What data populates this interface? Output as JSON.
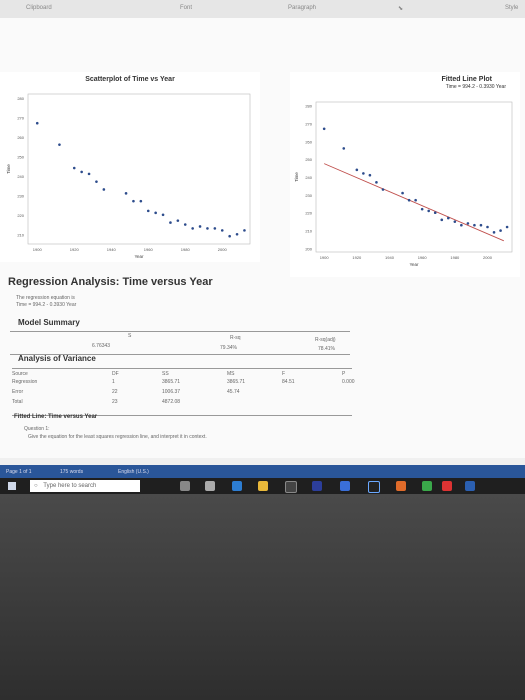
{
  "ribbon": {
    "clipboard": "Clipboard",
    "font": "Font",
    "paragraph": "Paragraph",
    "styles": "Style"
  },
  "scatter": {
    "title": "Scatterplot of Time vs Year",
    "xlabel": "Year",
    "ylabel": "Time",
    "yticks": [
      "280",
      "270",
      "260",
      "250",
      "240",
      "230",
      "220",
      "210"
    ],
    "xticks": [
      "1900",
      "1920",
      "1940",
      "1960",
      "1980",
      "2000"
    ]
  },
  "fitted": {
    "title": "Fitted Line Plot",
    "equation": "Time = 994.2 - 0.3930 Year",
    "xlabel": "Year",
    "ylabel": "Time",
    "yticks": [
      "280",
      "270",
      "260",
      "250",
      "240",
      "230",
      "220",
      "210",
      "200"
    ],
    "xticks": [
      "1900",
      "1920",
      "1940",
      "1960",
      "1980",
      "2000"
    ]
  },
  "chart_data": [
    {
      "type": "scatter",
      "title": "Scatterplot of Time vs Year",
      "xlabel": "Year",
      "ylabel": "Time",
      "xlim": [
        1895,
        2015
      ],
      "ylim": [
        205,
        282
      ],
      "x": [
        1900,
        1912,
        1920,
        1924,
        1928,
        1932,
        1936,
        1948,
        1952,
        1956,
        1960,
        1964,
        1968,
        1972,
        1976,
        1980,
        1984,
        1988,
        1992,
        1996,
        2000,
        2004,
        2008,
        2012
      ],
      "y": [
        267,
        256,
        244,
        242,
        241,
        237,
        233,
        231,
        227,
        227,
        222,
        221,
        220,
        216,
        217,
        215,
        213,
        214,
        213,
        213,
        212,
        209,
        210,
        212
      ]
    },
    {
      "type": "scatter",
      "title": "Fitted Line Plot",
      "subtitle": "Time = 994.2 - 0.3930 Year",
      "xlabel": "Year",
      "ylabel": "Time",
      "xlim": [
        1895,
        2015
      ],
      "ylim": [
        198,
        282
      ],
      "x": [
        1900,
        1912,
        1920,
        1924,
        1928,
        1932,
        1936,
        1948,
        1952,
        1956,
        1960,
        1964,
        1968,
        1972,
        1976,
        1980,
        1984,
        1988,
        1992,
        1996,
        2000,
        2004,
        2008,
        2012
      ],
      "y": [
        267,
        256,
        244,
        242,
        241,
        237,
        233,
        231,
        227,
        227,
        222,
        221,
        220,
        216,
        217,
        215,
        213,
        214,
        213,
        213,
        212,
        209,
        210,
        212
      ],
      "fit": {
        "intercept": 994.2,
        "slope": -0.393
      }
    }
  ],
  "analysis": {
    "heading": "Regression Analysis: Time versus Year",
    "eq_intro": "The regression equation is",
    "eq": "Time = 994.2 - 0.3930 Year",
    "model_summary": "Model Summary",
    "ms_headers": [
      "S",
      "R-sq",
      "R-sq(adj)"
    ],
    "ms_values": [
      "6.76343",
      "79.34%",
      "78.41%"
    ],
    "anova_title": "Analysis of Variance",
    "anova_headers": [
      "Source",
      "DF",
      "SS",
      "MS",
      "F",
      "P"
    ],
    "anova_rows": [
      [
        "Regression",
        "1",
        "3865.71",
        "3865.71",
        "84.51",
        "0.000"
      ],
      [
        "Error",
        "22",
        "1006.37",
        "45.74",
        "",
        ""
      ],
      [
        "Total",
        "23",
        "4872.08",
        "",
        "",
        ""
      ]
    ],
    "fitted_line": "Fitted Line: Time versus Year",
    "question_label": "Question 1:",
    "question": "Give the equation for the least squares regression line, and interpret it in context."
  },
  "status": {
    "page": "Page 1 of 1",
    "words": "175 words",
    "lang": "English (U.S.)"
  },
  "taskbar": {
    "search_placeholder": "Type here to search"
  }
}
